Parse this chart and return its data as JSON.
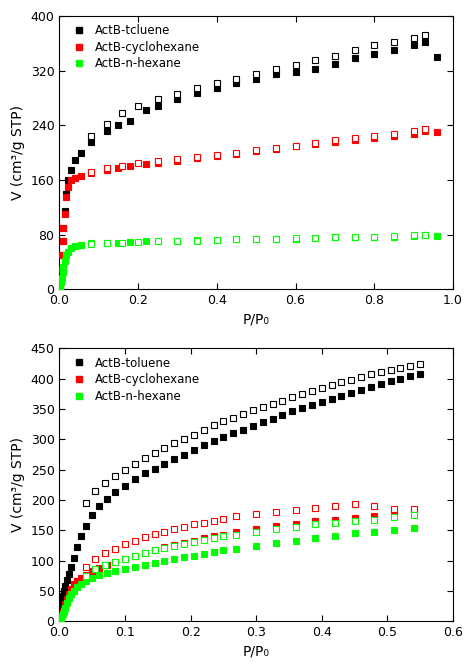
{
  "top": {
    "xlabel": "P/P₀",
    "ylabel": "V (cm³/g STP)",
    "xlim": [
      0,
      1.0
    ],
    "ylim": [
      0,
      400
    ],
    "yticks": [
      0,
      80,
      160,
      240,
      320,
      400
    ],
    "xticks": [
      0.0,
      0.2,
      0.4,
      0.6,
      0.8,
      1.0
    ],
    "legend_labels": [
      "ActB-tcluene",
      "ActB-cyclohexane",
      "ActB-n-hexane"
    ],
    "series": {
      "black_ads": {
        "x": [
          0.001,
          0.002,
          0.004,
          0.006,
          0.008,
          0.01,
          0.013,
          0.017,
          0.022,
          0.03,
          0.04,
          0.055,
          0.08,
          0.12,
          0.15,
          0.18,
          0.22,
          0.25,
          0.3,
          0.35,
          0.4,
          0.45,
          0.5,
          0.55,
          0.6,
          0.65,
          0.7,
          0.75,
          0.8,
          0.85,
          0.9,
          0.93,
          0.96
        ],
        "y": [
          5,
          15,
          30,
          50,
          70,
          90,
          115,
          140,
          160,
          175,
          190,
          200,
          215,
          232,
          240,
          246,
          262,
          268,
          278,
          288,
          295,
          302,
          308,
          315,
          318,
          322,
          330,
          338,
          345,
          350,
          358,
          362,
          340
        ]
      },
      "black_des": {
        "x": [
          0.08,
          0.12,
          0.16,
          0.2,
          0.25,
          0.3,
          0.35,
          0.4,
          0.45,
          0.5,
          0.55,
          0.6,
          0.65,
          0.7,
          0.75,
          0.8,
          0.85,
          0.9,
          0.93
        ],
        "y": [
          225,
          242,
          258,
          268,
          278,
          286,
          295,
          302,
          308,
          315,
          322,
          328,
          335,
          342,
          350,
          358,
          362,
          368,
          372
        ]
      },
      "red_ads": {
        "x": [
          0.001,
          0.002,
          0.004,
          0.006,
          0.008,
          0.01,
          0.013,
          0.017,
          0.022,
          0.03,
          0.04,
          0.055,
          0.08,
          0.12,
          0.15,
          0.18,
          0.22,
          0.25,
          0.3,
          0.35,
          0.4,
          0.45,
          0.5,
          0.55,
          0.6,
          0.65,
          0.7,
          0.75,
          0.8,
          0.85,
          0.9,
          0.93,
          0.96
        ],
        "y": [
          5,
          15,
          30,
          50,
          70,
          90,
          110,
          135,
          150,
          160,
          163,
          166,
          170,
          175,
          178,
          180,
          183,
          185,
          188,
          192,
          195,
          198,
          202,
          206,
          210,
          213,
          216,
          218,
          222,
          225,
          228,
          232,
          230
        ]
      },
      "red_des": {
        "x": [
          0.08,
          0.12,
          0.16,
          0.2,
          0.25,
          0.3,
          0.35,
          0.4,
          0.45,
          0.5,
          0.55,
          0.6,
          0.65,
          0.7,
          0.75,
          0.8,
          0.85,
          0.9,
          0.93
        ],
        "y": [
          172,
          177,
          181,
          185,
          188,
          191,
          194,
          197,
          200,
          204,
          207,
          210,
          214,
          218,
          222,
          225,
          228,
          232,
          235
        ]
      },
      "green_ads": {
        "x": [
          0.001,
          0.002,
          0.004,
          0.006,
          0.008,
          0.01,
          0.013,
          0.017,
          0.022,
          0.03,
          0.04,
          0.055,
          0.08,
          0.12,
          0.15,
          0.18,
          0.22,
          0.25,
          0.3,
          0.35,
          0.4,
          0.45,
          0.5,
          0.55,
          0.6,
          0.65,
          0.7,
          0.75,
          0.8,
          0.85,
          0.9,
          0.93,
          0.96
        ],
        "y": [
          2,
          5,
          10,
          17,
          25,
          33,
          42,
          50,
          55,
          60,
          63,
          65,
          67,
          68,
          68,
          69,
          70,
          70,
          71,
          72,
          72,
          73,
          73,
          74,
          74,
          75,
          76,
          76,
          77,
          77,
          78,
          79,
          78
        ]
      },
      "green_des": {
        "x": [
          0.08,
          0.12,
          0.16,
          0.2,
          0.25,
          0.3,
          0.35,
          0.4,
          0.45,
          0.5,
          0.55,
          0.6,
          0.65,
          0.7,
          0.75,
          0.8,
          0.85,
          0.9,
          0.93
        ],
        "y": [
          66,
          68,
          68,
          69,
          70,
          71,
          71,
          72,
          73,
          73,
          74,
          75,
          75,
          76,
          77,
          77,
          78,
          79,
          80
        ]
      }
    }
  },
  "bottom": {
    "xlabel": "P/P₀",
    "ylabel": "V (cm³/g STP)",
    "xlim": [
      0,
      0.6
    ],
    "ylim": [
      0,
      450
    ],
    "yticks": [
      0,
      50,
      100,
      150,
      200,
      250,
      300,
      350,
      400,
      450
    ],
    "xticks": [
      0.0,
      0.1,
      0.2,
      0.3,
      0.4,
      0.5,
      0.6
    ],
    "legend_labels": [
      "ActB-toluene",
      "ActB-cyclohexane",
      "ActB-n-hexane"
    ],
    "series": {
      "black_ads": {
        "x": [
          0.001,
          0.002,
          0.003,
          0.005,
          0.007,
          0.009,
          0.012,
          0.015,
          0.018,
          0.022,
          0.027,
          0.033,
          0.04,
          0.05,
          0.06,
          0.072,
          0.085,
          0.1,
          0.115,
          0.13,
          0.145,
          0.16,
          0.175,
          0.19,
          0.205,
          0.22,
          0.235,
          0.25,
          0.265,
          0.28,
          0.295,
          0.31,
          0.325,
          0.34,
          0.355,
          0.37,
          0.385,
          0.4,
          0.415,
          0.43,
          0.445,
          0.46,
          0.475,
          0.49,
          0.505,
          0.52,
          0.535,
          0.55
        ],
        "y": [
          20,
          28,
          35,
          42,
          50,
          58,
          68,
          78,
          90,
          105,
          122,
          140,
          158,
          175,
          190,
          202,
          213,
          224,
          234,
          244,
          252,
          260,
          268,
          275,
          283,
          291,
          298,
          304,
          310,
          316,
          322,
          328,
          334,
          340,
          346,
          352,
          357,
          362,
          367,
          372,
          377,
          382,
          387,
          392,
          396,
          400,
          404,
          408
        ]
      },
      "black_des": {
        "x": [
          0.04,
          0.055,
          0.07,
          0.085,
          0.1,
          0.115,
          0.13,
          0.145,
          0.16,
          0.175,
          0.19,
          0.205,
          0.22,
          0.235,
          0.25,
          0.265,
          0.28,
          0.295,
          0.31,
          0.325,
          0.34,
          0.355,
          0.37,
          0.385,
          0.4,
          0.415,
          0.43,
          0.445,
          0.46,
          0.475,
          0.49,
          0.505,
          0.52,
          0.535,
          0.55
        ],
        "y": [
          195,
          215,
          228,
          240,
          250,
          260,
          270,
          278,
          286,
          294,
          301,
          308,
          316,
          323,
          330,
          336,
          342,
          348,
          354,
          359,
          364,
          370,
          375,
          380,
          385,
          390,
          394,
          398,
          403,
          407,
          411,
          415,
          418,
          421,
          424
        ]
      },
      "red_ads": {
        "x": [
          0.001,
          0.002,
          0.003,
          0.005,
          0.007,
          0.009,
          0.012,
          0.015,
          0.018,
          0.022,
          0.027,
          0.033,
          0.04,
          0.05,
          0.06,
          0.072,
          0.085,
          0.1,
          0.115,
          0.13,
          0.145,
          0.16,
          0.175,
          0.19,
          0.205,
          0.22,
          0.235,
          0.25,
          0.27,
          0.3,
          0.33,
          0.36,
          0.39,
          0.42,
          0.45,
          0.48,
          0.51,
          0.54
        ],
        "y": [
          3,
          6,
          10,
          15,
          21,
          28,
          37,
          46,
          54,
          61,
          67,
          72,
          77,
          83,
          88,
          93,
          98,
          103,
          108,
          113,
          118,
          122,
          126,
          130,
          133,
          137,
          140,
          143,
          147,
          152,
          157,
          161,
          165,
          168,
          171,
          174,
          177,
          180
        ]
      },
      "red_des": {
        "x": [
          0.04,
          0.055,
          0.07,
          0.085,
          0.1,
          0.115,
          0.13,
          0.145,
          0.16,
          0.175,
          0.19,
          0.205,
          0.22,
          0.235,
          0.25,
          0.27,
          0.3,
          0.33,
          0.36,
          0.39,
          0.42,
          0.45,
          0.48,
          0.51,
          0.54
        ],
        "y": [
          90,
          103,
          112,
          120,
          127,
          133,
          139,
          144,
          148,
          153,
          156,
          160,
          163,
          166,
          169,
          173,
          177,
          181,
          184,
          187,
          190,
          193,
          190,
          186,
          185
        ]
      },
      "green_ads": {
        "x": [
          0.001,
          0.002,
          0.003,
          0.005,
          0.007,
          0.009,
          0.012,
          0.015,
          0.018,
          0.022,
          0.027,
          0.033,
          0.04,
          0.05,
          0.06,
          0.072,
          0.085,
          0.1,
          0.115,
          0.13,
          0.145,
          0.16,
          0.175,
          0.19,
          0.205,
          0.22,
          0.235,
          0.25,
          0.27,
          0.3,
          0.33,
          0.36,
          0.39,
          0.42,
          0.45,
          0.48,
          0.51,
          0.54
        ],
        "y": [
          2,
          5,
          8,
          12,
          17,
          22,
          30,
          38,
          45,
          51,
          57,
          62,
          67,
          72,
          76,
          80,
          83,
          87,
          90,
          93,
          97,
          100,
          103,
          106,
          108,
          111,
          114,
          117,
          120,
          125,
          129,
          133,
          137,
          141,
          145,
          148,
          151,
          154
        ]
      },
      "green_des": {
        "x": [
          0.04,
          0.055,
          0.07,
          0.085,
          0.1,
          0.115,
          0.13,
          0.145,
          0.16,
          0.175,
          0.19,
          0.205,
          0.22,
          0.235,
          0.25,
          0.27,
          0.3,
          0.33,
          0.36,
          0.39,
          0.42,
          0.45,
          0.48,
          0.51,
          0.54
        ],
        "y": [
          75,
          86,
          93,
          98,
          103,
          108,
          113,
          117,
          121,
          125,
          128,
          131,
          134,
          137,
          140,
          143,
          148,
          152,
          156,
          160,
          163,
          166,
          168,
          172,
          176
        ]
      }
    }
  }
}
